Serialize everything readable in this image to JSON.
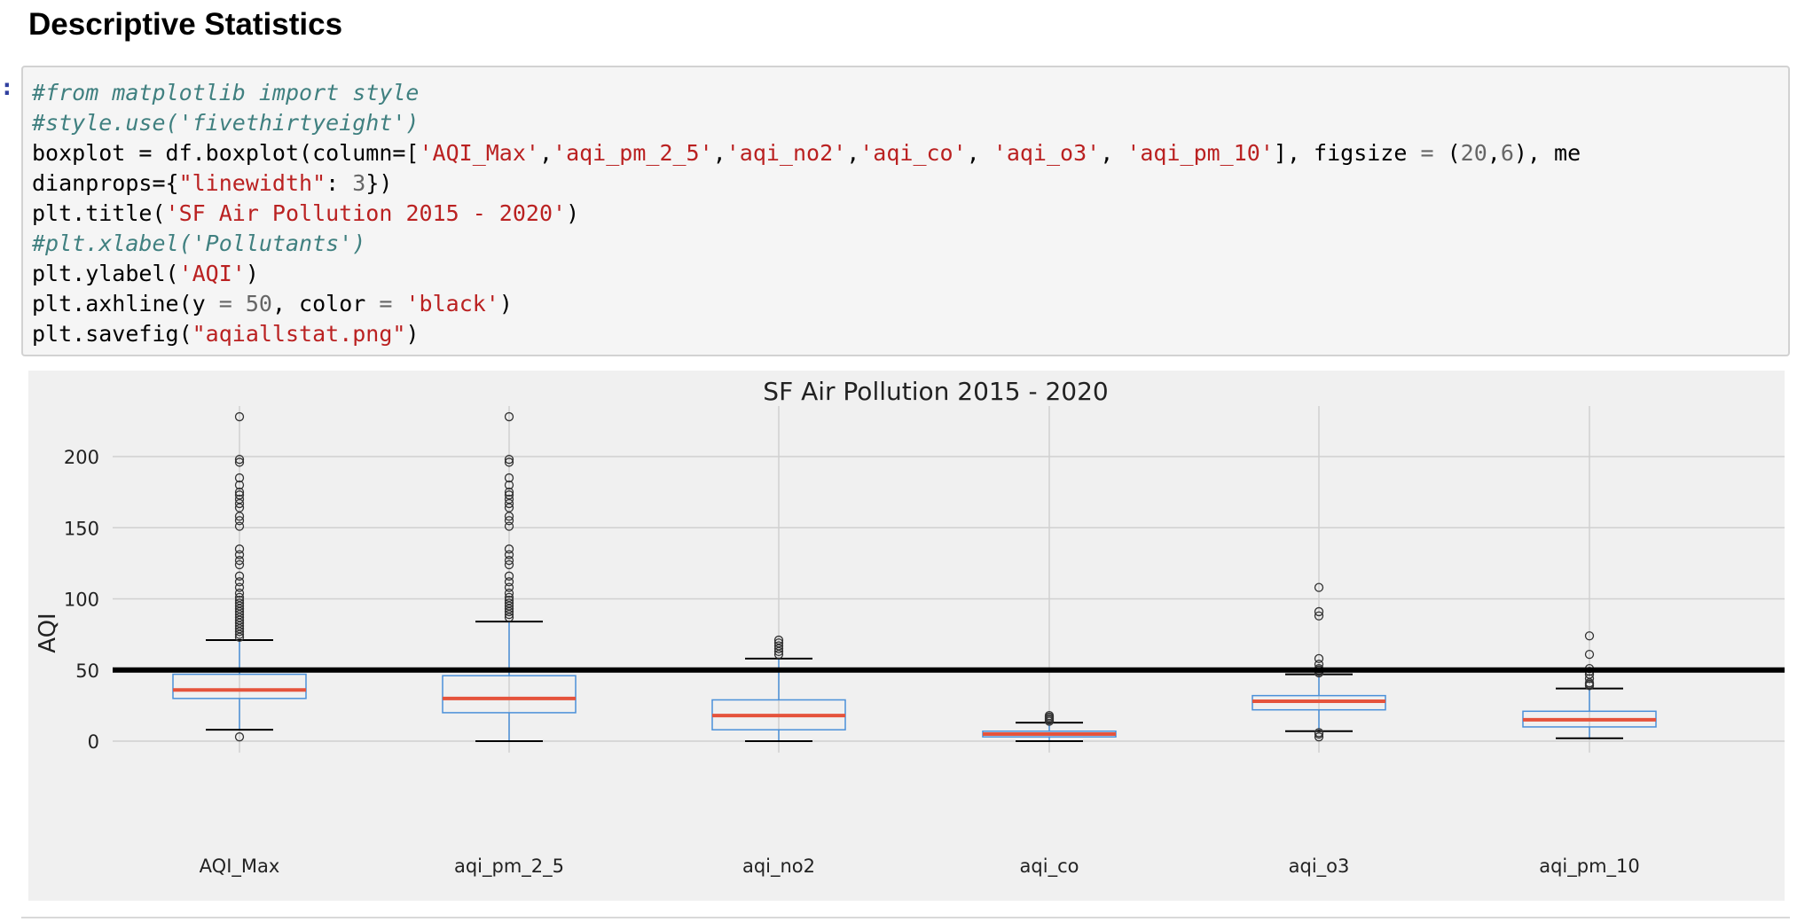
{
  "section": {
    "heading": "Descriptive Statistics",
    "prompt": ":"
  },
  "code": {
    "line1": "#from matplotlib import style",
    "line2": "#style.use('fivethirtyeight')",
    "line3a": "boxplot = df.boxplot(column=[",
    "col1": "'AQI_Max'",
    "col2": "'aqi_pm_2_5'",
    "col3": "'aqi_no2'",
    "col4": "'aqi_co'",
    "col5": "'aqi_o3'",
    "col6": "'aqi_pm_10'",
    "line3b": "], figsize ",
    "figsize_a": "20",
    "figsize_b": "6",
    "line3c": "), me",
    "line4a": "dianprops={",
    "line4key": "\"linewidth\"",
    "line4num": "3",
    "line4b": "})",
    "line5a": "plt.title(",
    "line5str": "'SF Air Pollution 2015 - 2020'",
    "line5b": ")",
    "line6": "#plt.xlabel('Pollutants')",
    "line7a": "plt.ylabel(",
    "line7str": "'AQI'",
    "line7b": ")",
    "line8a": "plt.axhline(y ",
    "line8num": "50",
    "line8b": ", color ",
    "line8str": "'black'",
    "line8c": ")",
    "line9a": "plt.savefig(",
    "line9str": "\"aqiallstat.png\"",
    "line9b": ")"
  },
  "colors": {
    "box": "#4a90d9",
    "median": "#e5533c",
    "axhline": "#000000",
    "grid": "#d0d0d0",
    "background": "#f0f0f0"
  },
  "chart_data": {
    "type": "box",
    "title": "SF Air Pollution 2015 - 2020",
    "xlabel": "",
    "ylabel": "AQI",
    "ylim": [
      -8,
      238
    ],
    "yticks": [
      0,
      50,
      100,
      150,
      200
    ],
    "grid": true,
    "axhline": 50,
    "categories": [
      "AQI_Max",
      "aqi_pm_2_5",
      "aqi_no2",
      "aqi_co",
      "aqi_o3",
      "aqi_pm_10"
    ],
    "boxes": [
      {
        "name": "AQI_Max",
        "whislo": 8,
        "q1": 30,
        "med": 36,
        "q3": 47,
        "whishi": 71,
        "fliers": [
          3,
          73,
          75,
          77,
          79,
          81,
          83,
          85,
          87,
          89,
          91,
          93,
          95,
          97,
          99,
          101,
          104,
          108,
          112,
          116,
          124,
          127,
          131,
          135,
          151,
          155,
          158,
          164,
          167,
          170,
          173,
          175,
          180,
          185,
          196,
          198,
          228
        ]
      },
      {
        "name": "aqi_pm_2_5",
        "whislo": 0,
        "q1": 20,
        "med": 30,
        "q3": 46,
        "whishi": 84,
        "fliers": [
          87,
          89,
          91,
          93,
          95,
          97,
          99,
          101,
          104,
          108,
          112,
          116,
          124,
          127,
          131,
          135,
          151,
          155,
          158,
          164,
          167,
          170,
          173,
          175,
          180,
          185,
          196,
          198,
          228
        ]
      },
      {
        "name": "aqi_no2",
        "whislo": 0,
        "q1": 8,
        "med": 18,
        "q3": 29,
        "whishi": 58,
        "fliers": [
          61,
          63,
          65,
          67,
          69,
          71
        ]
      },
      {
        "name": "aqi_co",
        "whislo": 0,
        "q1": 3,
        "med": 5,
        "q3": 7,
        "whishi": 13,
        "fliers": [
          14,
          15,
          16,
          17,
          18
        ]
      },
      {
        "name": "aqi_o3",
        "whislo": 7,
        "q1": 22,
        "med": 28,
        "q3": 32,
        "whishi": 47,
        "fliers": [
          3,
          5,
          6,
          48,
          49,
          50,
          51,
          54,
          58,
          88,
          91,
          108
        ]
      },
      {
        "name": "aqi_pm_10",
        "whislo": 2,
        "q1": 10,
        "med": 15,
        "q3": 21,
        "whishi": 37,
        "fliers": [
          39,
          40,
          41,
          44,
          47,
          49,
          51,
          61,
          74
        ]
      }
    ]
  }
}
